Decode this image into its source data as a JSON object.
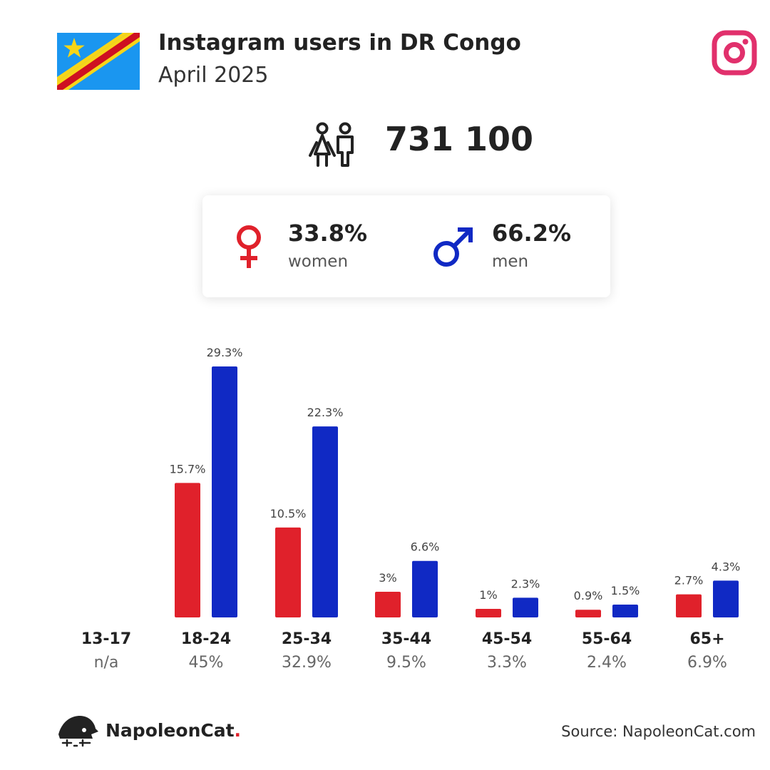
{
  "header": {
    "title": "Instagram users in DR Congo",
    "subtitle": "April 2025",
    "flag_icon": "dr-congo-flag-icon",
    "app_icon": "instagram-icon"
  },
  "summary": {
    "icon": "users-icon",
    "total": "731 100",
    "women": {
      "pct": "33.8%",
      "label": "women",
      "icon": "female-symbol-icon"
    },
    "men": {
      "pct": "66.2%",
      "label": "men",
      "icon": "male-symbol-icon"
    }
  },
  "colors": {
    "women": "#e0212b",
    "men": "#1029c4",
    "instagram": "#e1306c"
  },
  "chart_data": {
    "type": "bar",
    "categories": [
      "13-17",
      "18-24",
      "25-34",
      "35-44",
      "45-54",
      "55-64",
      "65+"
    ],
    "category_totals": [
      "n/a",
      "45%",
      "32.9%",
      "9.5%",
      "3.3%",
      "2.4%",
      "6.9%"
    ],
    "series": [
      {
        "name": "women",
        "values": [
          null,
          15.7,
          10.5,
          3,
          1,
          0.9,
          2.7
        ],
        "labels": [
          "",
          "15.7%",
          "10.5%",
          "3%",
          "1%",
          "0.9%",
          "2.7%"
        ]
      },
      {
        "name": "men",
        "values": [
          null,
          29.3,
          22.3,
          6.6,
          2.3,
          1.5,
          4.3
        ],
        "labels": [
          "",
          "29.3%",
          "22.3%",
          "6.6%",
          "2.3%",
          "1.5%",
          "4.3%"
        ]
      }
    ],
    "ylim": [
      0,
      29.3
    ],
    "grid": false,
    "legend": "none"
  },
  "footer": {
    "brand": "NapoleonCat",
    "brand_dot": ".",
    "brand_icon": "napoleoncat-logo-icon",
    "source": "Source: NapoleonCat.com"
  }
}
